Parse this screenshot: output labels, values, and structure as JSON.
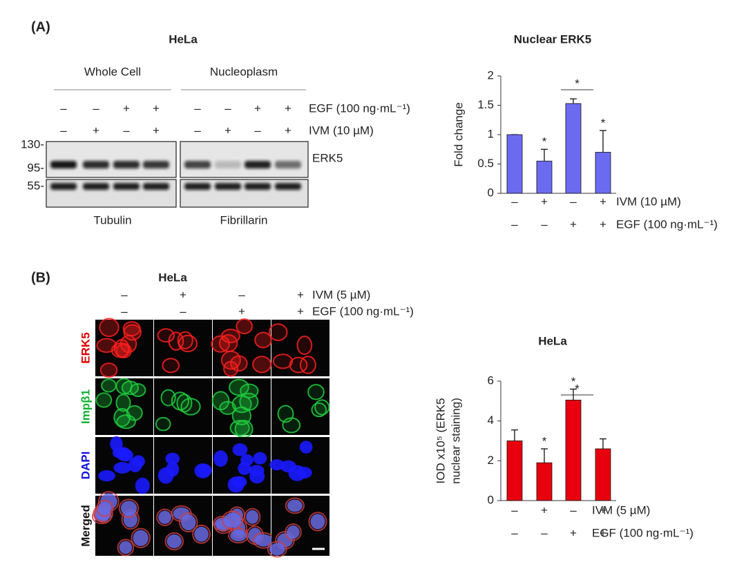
{
  "panel_a": {
    "label": "(A)",
    "title": "HeLa",
    "groups": [
      "Whole Cell",
      "Nucleoplasm"
    ],
    "egf_label": "EGF (100 ng·mL⁻¹)",
    "egf_signs": [
      "–",
      "–",
      "+",
      "+",
      "–",
      "–",
      "+",
      "+"
    ],
    "ivm_label": "IVM (10 µM)",
    "ivm_signs": [
      "–",
      "+",
      "–",
      "+",
      "–",
      "+",
      "–",
      "+"
    ],
    "mw_markers": [
      "130-",
      "95-",
      "55-"
    ],
    "band_label": "ERK5",
    "loading_labels": [
      "Tubulin",
      "Fibrillarin"
    ]
  },
  "panel_b": {
    "label": "(B)",
    "title": "HeLa",
    "ivm_label": "IVM (5 µM)",
    "ivm_signs": [
      "–",
      "+",
      "–",
      "+"
    ],
    "egf_label": "EGF (100 ng·mL⁻¹)",
    "egf_signs": [
      "–",
      "–",
      "+",
      "+"
    ],
    "row_labels": [
      "ERK5",
      "Impβ1",
      "DAPI",
      "Merged"
    ]
  },
  "chart_data": [
    {
      "type": "bar",
      "title": "Nuclear ERK5",
      "ylabel": [
        "Fold change"
      ],
      "values": [
        1,
        0.55,
        1.53,
        0.7
      ],
      "errors": [
        0,
        0.2,
        0.08,
        0.37
      ],
      "color": "#6b6bf2",
      "ylim": [
        0,
        2
      ],
      "yticks": [
        0,
        {
          "value": 0.5,
          "label": "0.5"
        },
        1,
        {
          "value": 1.5,
          "label": "1.5"
        },
        2
      ],
      "stars": [
        null,
        "*",
        null,
        "*"
      ],
      "brackets": [
        null,
        null,
        "*",
        null
      ],
      "condition_rows": [
        {
          "label": "IVM (10 µM)",
          "signs": [
            "–",
            "+",
            "–",
            "+"
          ]
        },
        {
          "label": "EGF (100 ng·mL⁻¹)",
          "signs": [
            "–",
            "–",
            "+",
            "+"
          ]
        }
      ]
    },
    {
      "type": "bar",
      "title": "HeLa",
      "ylabel": [
        "IOD x10⁵ (ERK5",
        "nuclear staining)"
      ],
      "values": [
        3.0,
        1.9,
        5.05,
        2.6
      ],
      "errors": [
        0.55,
        0.7,
        0.55,
        0.5
      ],
      "color": "#e8000e",
      "ylim": [
        0,
        6
      ],
      "yticks": [
        0,
        2,
        4,
        6
      ],
      "stars": [
        null,
        "*",
        "*",
        null
      ],
      "brackets": [
        null,
        null,
        "*",
        null
      ],
      "condition_rows": [
        {
          "label": "IVM (5 µM)",
          "signs": [
            "–",
            "+",
            "–",
            "+"
          ]
        },
        {
          "label": "EGF (100 ng·mL⁻¹)",
          "signs": [
            "–",
            "–",
            "+",
            "+"
          ]
        }
      ]
    }
  ]
}
